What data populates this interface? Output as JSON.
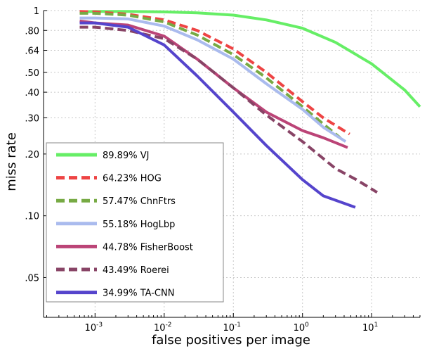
{
  "chart_data": {
    "type": "line",
    "title": "",
    "xlabel": "false positives per image",
    "ylabel": "miss rate",
    "xscale": "log",
    "yscale": "log",
    "xlim": [
      0.00018,
      50
    ],
    "ylim": [
      0.032,
      1
    ],
    "grid": true,
    "legend_position": "bottom-left",
    "x_ticks": [
      {
        "value": 0.001,
        "base": "10",
        "exp": "-3"
      },
      {
        "value": 0.01,
        "base": "10",
        "exp": "-2"
      },
      {
        "value": 0.1,
        "base": "10",
        "exp": "-1"
      },
      {
        "value": 1,
        "base": "10",
        "exp": "0"
      },
      {
        "value": 10,
        "base": "10",
        "exp": "1"
      }
    ],
    "y_ticks": [
      {
        "value": 1,
        "label": "1"
      },
      {
        "value": 0.8,
        "label": ".80"
      },
      {
        "value": 0.64,
        "label": ".64"
      },
      {
        "value": 0.5,
        "label": ".50"
      },
      {
        "value": 0.4,
        "label": ".40"
      },
      {
        "value": 0.3,
        "label": ".30"
      },
      {
        "value": 0.2,
        "label": ".20"
      },
      {
        "value": 0.1,
        "label": ".10"
      },
      {
        "value": 0.05,
        "label": ".05"
      }
    ],
    "series": [
      {
        "name": "89.89% VJ",
        "color": "#66ee66",
        "dash": "solid",
        "x": [
          0.0006,
          0.001,
          0.003,
          0.01,
          0.03,
          0.1,
          0.3,
          1,
          3,
          10,
          30,
          50
        ],
        "y": [
          0.985,
          0.99,
          0.99,
          0.985,
          0.975,
          0.95,
          0.9,
          0.82,
          0.7,
          0.55,
          0.41,
          0.34
        ]
      },
      {
        "name": "64.23% HOG",
        "color": "#ee4444",
        "dash": "dashed",
        "x": [
          0.0006,
          0.001,
          0.003,
          0.01,
          0.03,
          0.1,
          0.3,
          1,
          2,
          4.8
        ],
        "y": [
          0.99,
          0.985,
          0.96,
          0.9,
          0.8,
          0.65,
          0.5,
          0.36,
          0.3,
          0.25
        ]
      },
      {
        "name": "57.47% ChnFtrs",
        "color": "#77aa44",
        "dash": "dashed",
        "x": [
          0.0006,
          0.001,
          0.003,
          0.01,
          0.03,
          0.1,
          0.3,
          1,
          2,
          3.5
        ],
        "y": [
          0.97,
          0.97,
          0.95,
          0.88,
          0.76,
          0.61,
          0.47,
          0.34,
          0.28,
          0.24
        ]
      },
      {
        "name": "55.18% HogLbp",
        "color": "#aabbee",
        "dash": "solid",
        "x": [
          0.0006,
          0.001,
          0.003,
          0.01,
          0.03,
          0.1,
          0.3,
          1,
          2,
          4.2
        ],
        "y": [
          0.92,
          0.92,
          0.91,
          0.84,
          0.72,
          0.58,
          0.44,
          0.33,
          0.27,
          0.23
        ]
      },
      {
        "name": "44.78% FisherBoost",
        "color": "#bb4477",
        "dash": "solid",
        "x": [
          0.0006,
          0.001,
          0.003,
          0.01,
          0.03,
          0.1,
          0.3,
          1,
          2,
          4.5
        ],
        "y": [
          0.89,
          0.87,
          0.85,
          0.75,
          0.58,
          0.42,
          0.32,
          0.26,
          0.24,
          0.215
        ]
      },
      {
        "name": "43.49% Roerei",
        "color": "#884466",
        "dash": "dashed",
        "x": [
          0.0006,
          0.001,
          0.003,
          0.01,
          0.03,
          0.1,
          0.3,
          1,
          3,
          6,
          12
        ],
        "y": [
          0.83,
          0.83,
          0.8,
          0.73,
          0.58,
          0.42,
          0.31,
          0.23,
          0.17,
          0.15,
          0.13
        ]
      },
      {
        "name": "34.99% TA-CNN",
        "color": "#5544cc",
        "dash": "solid",
        "x": [
          0.0006,
          0.001,
          0.003,
          0.01,
          0.03,
          0.1,
          0.3,
          1,
          2,
          5.8
        ],
        "y": [
          0.87,
          0.87,
          0.83,
          0.68,
          0.48,
          0.32,
          0.22,
          0.15,
          0.125,
          0.11
        ]
      }
    ]
  }
}
